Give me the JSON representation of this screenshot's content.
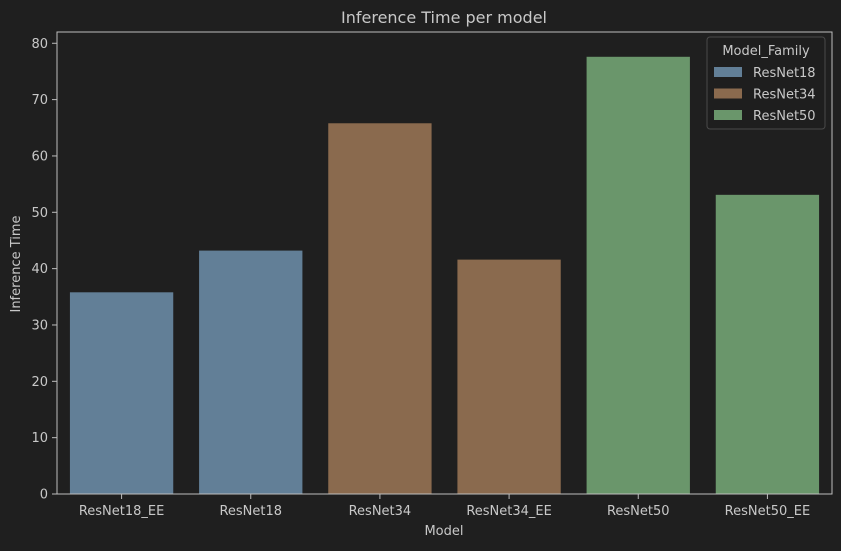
{
  "chart_data": {
    "type": "bar",
    "title": "Inference Time per model",
    "xlabel": "Model",
    "ylabel": "Inference Time",
    "ylim": [
      0,
      82
    ],
    "yticks": [
      0,
      10,
      20,
      30,
      40,
      50,
      60,
      70,
      80
    ],
    "grid": false,
    "categories": [
      "ResNet18_EE",
      "ResNet18",
      "ResNet34",
      "ResNet34_EE",
      "ResNet50",
      "ResNet50_EE"
    ],
    "values": [
      35.8,
      43.2,
      65.8,
      41.6,
      77.6,
      53.1
    ],
    "hue": [
      "ResNet18",
      "ResNet18",
      "ResNet34",
      "ResNet34",
      "ResNet50",
      "ResNet50"
    ],
    "legend": {
      "title": "Model_Family",
      "placement": "top-right",
      "entries": [
        {
          "name": "ResNet18",
          "color": "#627f97"
        },
        {
          "name": "ResNet34",
          "color": "#8a6a4e"
        },
        {
          "name": "ResNet50",
          "color": "#6a966b"
        }
      ]
    },
    "colors": {
      "background": "#1f1f1f",
      "axes": "#bdbdbd",
      "text": "#c8c8c8"
    }
  }
}
